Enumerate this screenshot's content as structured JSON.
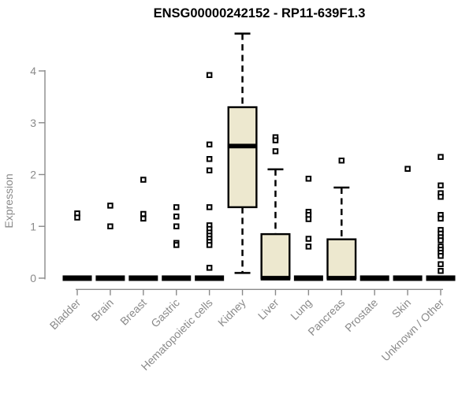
{
  "chart_data": {
    "type": "boxplot",
    "title": "ENSG00000242152 - RP11-639F1.3",
    "ylabel": "Expression",
    "xlabel": "",
    "yticks": [
      0,
      1,
      2,
      3,
      4
    ],
    "ylim": [
      0,
      4.85
    ],
    "grid": false,
    "legend": "none",
    "categories": [
      "Bladder",
      "Brain",
      "Breast",
      "Gastric",
      "Hematopoietic cells",
      "Kidney",
      "Liver",
      "Lung",
      "Pancreas",
      "Prostate",
      "Skin",
      "Unknown / Other"
    ],
    "series": [
      {
        "category": "Bladder",
        "q1": 0,
        "median": 0,
        "q3": 0,
        "whisker_low": 0,
        "whisker_high": 0,
        "outliers": [
          1.25,
          1.17
        ]
      },
      {
        "category": "Brain",
        "q1": 0,
        "median": 0,
        "q3": 0,
        "whisker_low": 0,
        "whisker_high": 0,
        "outliers": [
          1.4,
          1.0
        ]
      },
      {
        "category": "Breast",
        "q1": 0,
        "median": 0,
        "q3": 0,
        "whisker_low": 0,
        "whisker_high": 0,
        "outliers": [
          1.9,
          1.24,
          1.15
        ]
      },
      {
        "category": "Gastric",
        "q1": 0,
        "median": 0,
        "q3": 0,
        "whisker_low": 0,
        "whisker_high": 0,
        "outliers": [
          1.37,
          1.19,
          1.0,
          0.68,
          0.64
        ]
      },
      {
        "category": "Hematopoietic cells",
        "q1": 0,
        "median": 0,
        "q3": 0,
        "whisker_low": 0,
        "whisker_high": 0,
        "outliers": [
          3.92,
          2.58,
          2.3,
          2.08,
          1.37,
          1.02,
          0.95,
          0.88,
          0.82,
          0.76,
          0.7,
          0.64,
          0.2
        ]
      },
      {
        "category": "Kidney",
        "q1": 1.37,
        "median": 2.55,
        "q3": 3.3,
        "whisker_low": 0.1,
        "whisker_high": 4.72,
        "outliers": []
      },
      {
        "category": "Liver",
        "q1": 0,
        "median": 0,
        "q3": 0.85,
        "whisker_low": 0,
        "whisker_high": 2.1,
        "outliers": [
          2.72,
          2.66,
          2.45
        ]
      },
      {
        "category": "Lung",
        "q1": 0,
        "median": 0,
        "q3": 0,
        "whisker_low": 0,
        "whisker_high": 0,
        "outliers": [
          1.92,
          1.28,
          1.22,
          1.14,
          0.76,
          0.61
        ]
      },
      {
        "category": "Pancreas",
        "q1": 0,
        "median": 0,
        "q3": 0.75,
        "whisker_low": 0,
        "whisker_high": 1.75,
        "outliers": [
          2.27
        ]
      },
      {
        "category": "Prostate",
        "q1": 0,
        "median": 0,
        "q3": 0,
        "whisker_low": 0,
        "whisker_high": 0,
        "outliers": []
      },
      {
        "category": "Skin",
        "q1": 0,
        "median": 0,
        "q3": 0,
        "whisker_low": 0,
        "whisker_high": 0,
        "outliers": [
          2.11
        ]
      },
      {
        "category": "Unknown / Other",
        "q1": 0,
        "median": 0,
        "q3": 0,
        "whisker_low": 0,
        "whisker_high": 0,
        "outliers": [
          2.34,
          1.79,
          1.64,
          1.57,
          1.22,
          1.15,
          0.93,
          0.86,
          0.79,
          0.73,
          0.61,
          0.55,
          0.49,
          0.43,
          0.27,
          0.14
        ]
      }
    ],
    "colors": {
      "box_fill": "#EDE8CF",
      "box_stroke": "#000000",
      "median": "#000000",
      "whisker": "#000000",
      "outlier_stroke": "#000000",
      "outlier_fill": "#FFFFFF",
      "axis": "#8A8A8A",
      "tick_label": "#8A8A8A",
      "title": "#000000",
      "background": "#FFFFFF"
    }
  }
}
